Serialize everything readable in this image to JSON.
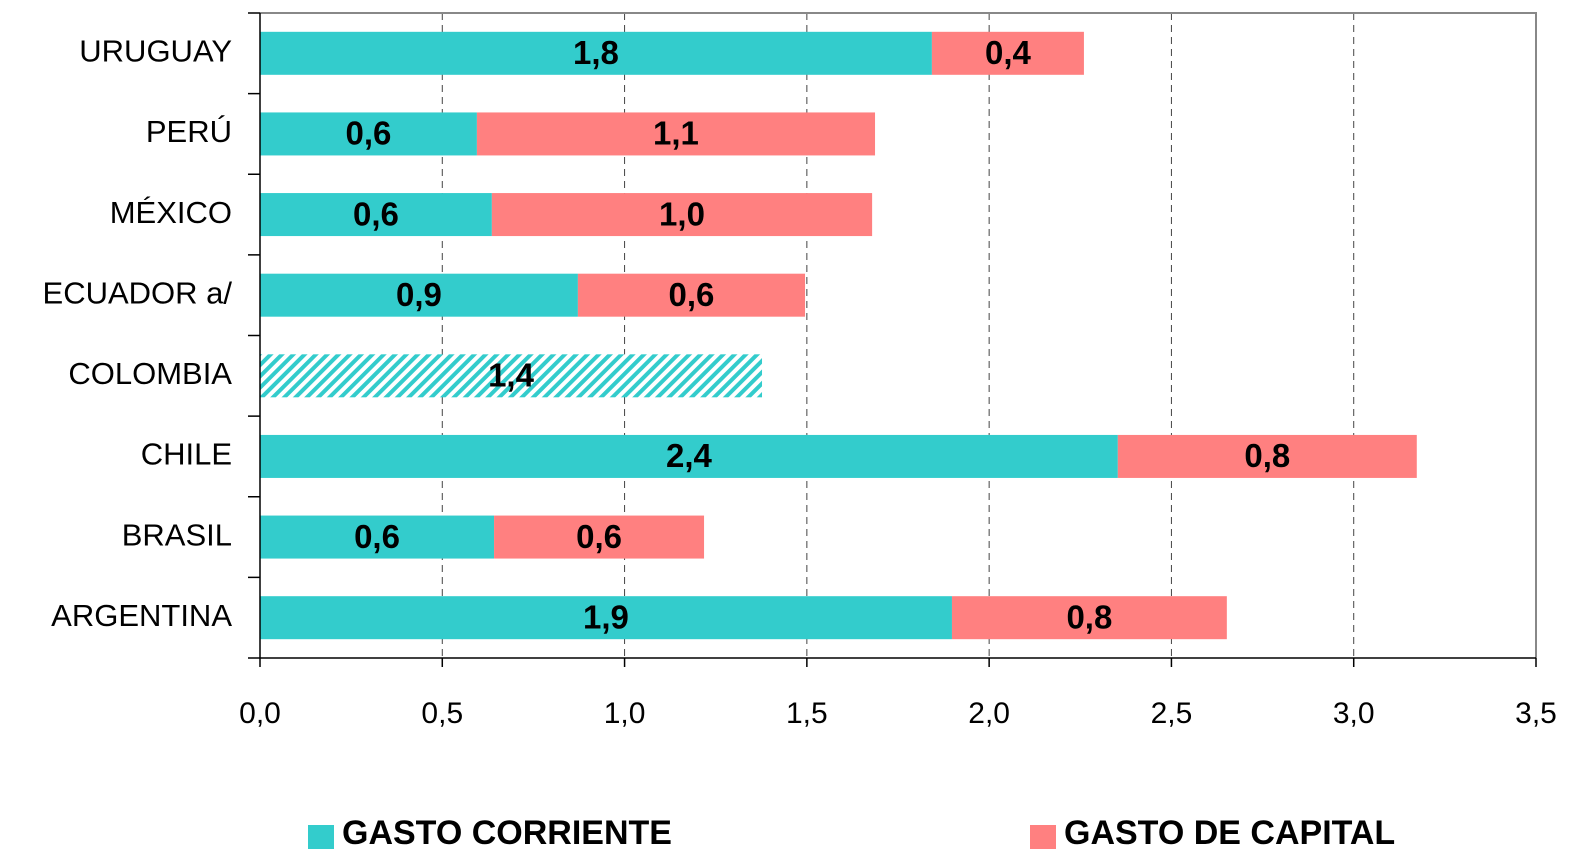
{
  "chart_data": {
    "type": "stacked_barh",
    "categories": [
      "ARGENTINA",
      "BRASIL",
      "CHILE",
      "COLOMBIA",
      "ECUADOR a/",
      "MÉXICO",
      "PERÚ",
      "URUGUAY"
    ],
    "series": [
      {
        "name": "GASTO CORRIENTE",
        "color": "#33cccc",
        "values": [
          1.898,
          0.642,
          2.353,
          1.377,
          0.872,
          0.636,
          0.595,
          1.843
        ],
        "value_labels": [
          "1,9",
          "0,6",
          "2,4",
          "1,4",
          "0,9",
          "0,6",
          "0,6",
          "1,8"
        ],
        "hatch": [
          false,
          false,
          false,
          true,
          false,
          false,
          false,
          false
        ]
      },
      {
        "name": "GASTO DE CAPITAL",
        "color": "#ff8080",
        "values": [
          0.754,
          0.576,
          0.82,
          null,
          0.623,
          1.043,
          1.092,
          0.417
        ],
        "value_labels": [
          "0,8",
          "0,6",
          "0,8",
          null,
          "0,6",
          "1,0",
          "1,1",
          "0,4"
        ]
      }
    ],
    "xlim": [
      0,
      3.5
    ],
    "xticks": [
      {
        "value": 0,
        "label": "0,0"
      },
      {
        "value": 0.5,
        "label": "0,5"
      },
      {
        "value": 1,
        "label": "1,0"
      },
      {
        "value": 1.5,
        "label": "1,5"
      },
      {
        "value": 2,
        "label": "2,0"
      },
      {
        "value": 2.5,
        "label": "2,5"
      },
      {
        "value": 3,
        "label": "3,0"
      },
      {
        "value": 3.5,
        "label": "3,5"
      }
    ],
    "grid": true
  }
}
